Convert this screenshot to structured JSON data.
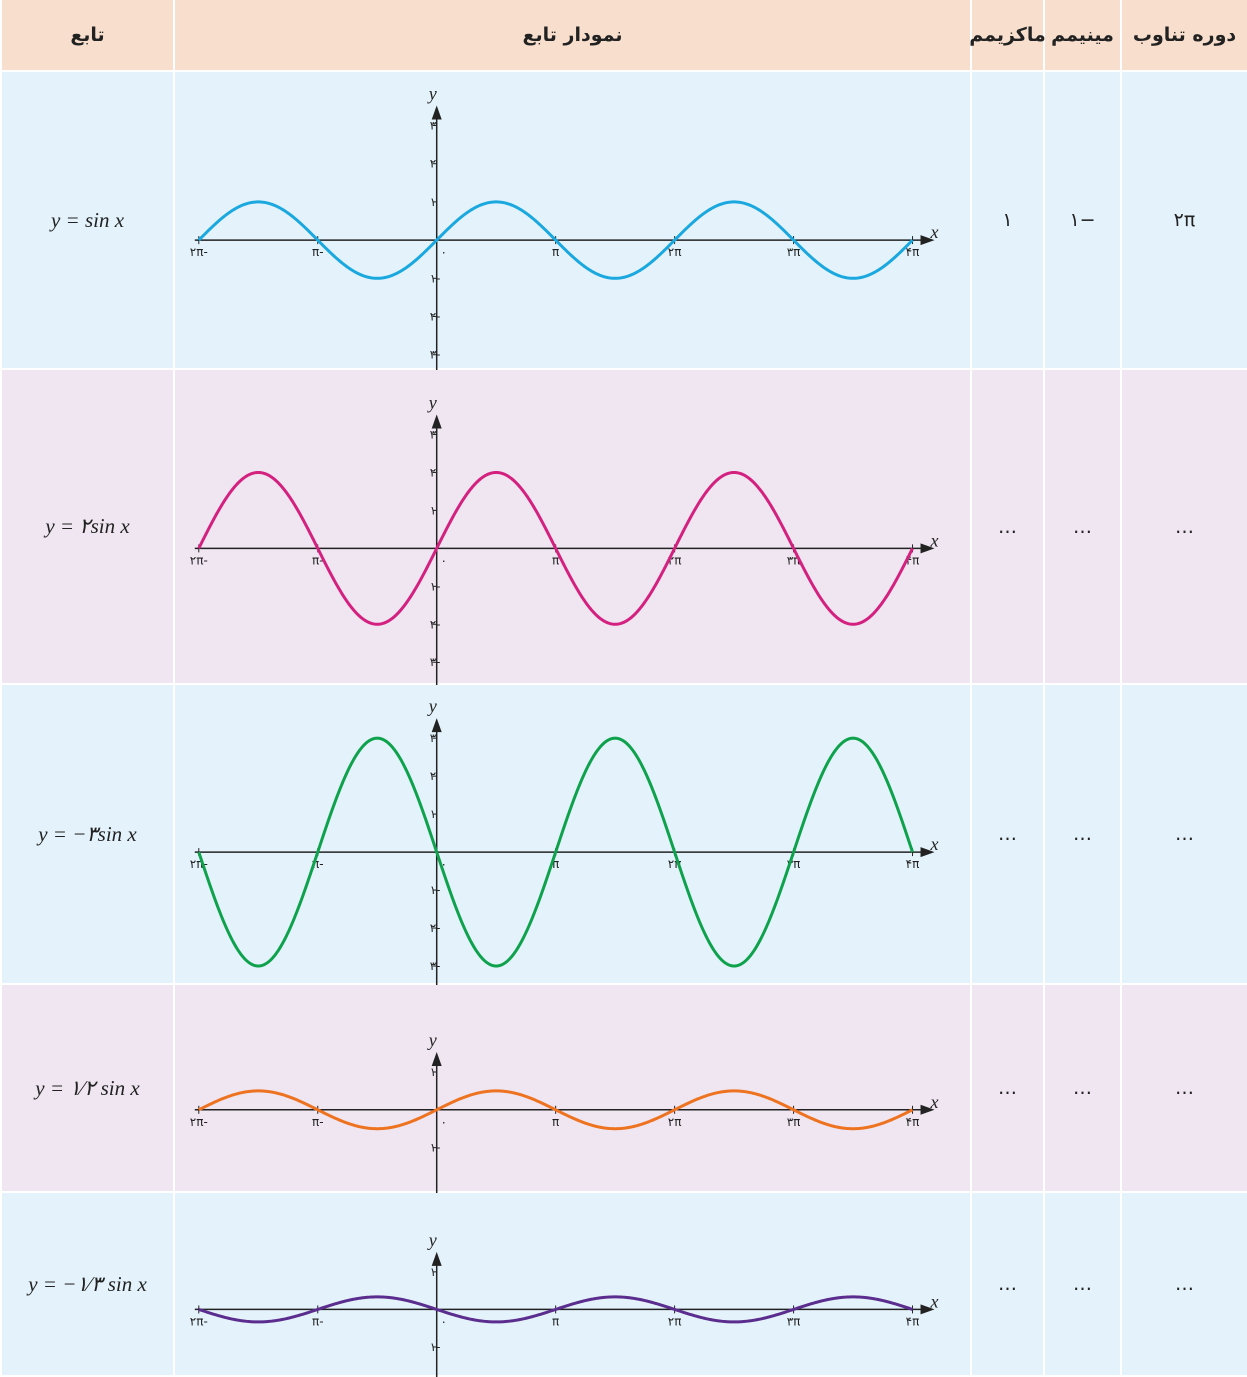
{
  "header": [
    "دوره تناوب",
    "مینیمم",
    "ماکزیمم",
    "نمودار تابع",
    "تابع"
  ],
  "axis_labels": {
    "x": "x",
    "y": "y"
  },
  "xlim": [
    -2.2,
    4.5
  ],
  "xticks": [
    {
      "value": -2,
      "label": "-۲π"
    },
    {
      "value": -1,
      "label": "-π"
    },
    {
      "value": 0,
      "label": "۰"
    },
    {
      "value": 1,
      "label": "π"
    },
    {
      "value": 2,
      "label": "۲π"
    },
    {
      "value": 3,
      "label": "۳π"
    },
    {
      "value": 4,
      "label": "۴π"
    }
  ],
  "rows": [
    {
      "function": "y = sin x",
      "coefficient": 1,
      "color": "#1aa8df",
      "ylim": [
        -3.4,
        4.4
      ],
      "yticks": [
        {
          "value": 3,
          "label": "۳"
        },
        {
          "value": 2,
          "label": "۲"
        },
        {
          "value": 1,
          "label": "۱"
        },
        {
          "value": -1,
          "label": "-۱"
        },
        {
          "value": -2,
          "label": "-۲"
        },
        {
          "value": -3,
          "label": "-۳"
        }
      ],
      "maximum": "۱",
      "minimum": "−۱",
      "period": "۲π"
    },
    {
      "function": "y = ۲sin x",
      "coefficient": 2,
      "color": "#d42180",
      "ylim": [
        -3.6,
        4.7
      ],
      "yticks": [
        {
          "value": 3,
          "label": "۳"
        },
        {
          "value": 2,
          "label": "۲"
        },
        {
          "value": 1,
          "label": "۱"
        },
        {
          "value": -1,
          "label": "-۱"
        },
        {
          "value": -2,
          "label": "-۲"
        },
        {
          "value": -3,
          "label": "-۳"
        }
      ],
      "maximum": "…",
      "minimum": "…",
      "period": "…"
    },
    {
      "function": "y = −۳sin x",
      "coefficient": -3,
      "color": "#0fa24d",
      "ylim": [
        -3.5,
        4.4
      ],
      "yticks": [
        {
          "value": 3,
          "label": "۳"
        },
        {
          "value": 2,
          "label": "۲"
        },
        {
          "value": 1,
          "label": "۱"
        },
        {
          "value": -1,
          "label": "-۱"
        },
        {
          "value": -2,
          "label": "-۲"
        },
        {
          "value": -3,
          "label": "-۳"
        }
      ],
      "maximum": "…",
      "minimum": "…",
      "period": "…"
    },
    {
      "function": "y = ۱⁄۲ sin x",
      "coefficient": 0.5,
      "color": "#ee7321",
      "ylim": [
        -2.2,
        3.3
      ],
      "yticks": [
        {
          "value": 1,
          "label": "۱"
        },
        {
          "value": -1,
          "label": "-۱"
        }
      ],
      "maximum": "…",
      "minimum": "…",
      "period": "…"
    },
    {
      "function": "y = −۱⁄۳ sin x",
      "coefficient": -0.3333,
      "color": "#5b2d8e",
      "ylim": [
        -1.8,
        3.1
      ],
      "yticks": [
        {
          "value": 1,
          "label": "۱"
        },
        {
          "value": -1,
          "label": "-۱"
        }
      ],
      "maximum": "…",
      "minimum": "…",
      "period": "…"
    }
  ]
}
